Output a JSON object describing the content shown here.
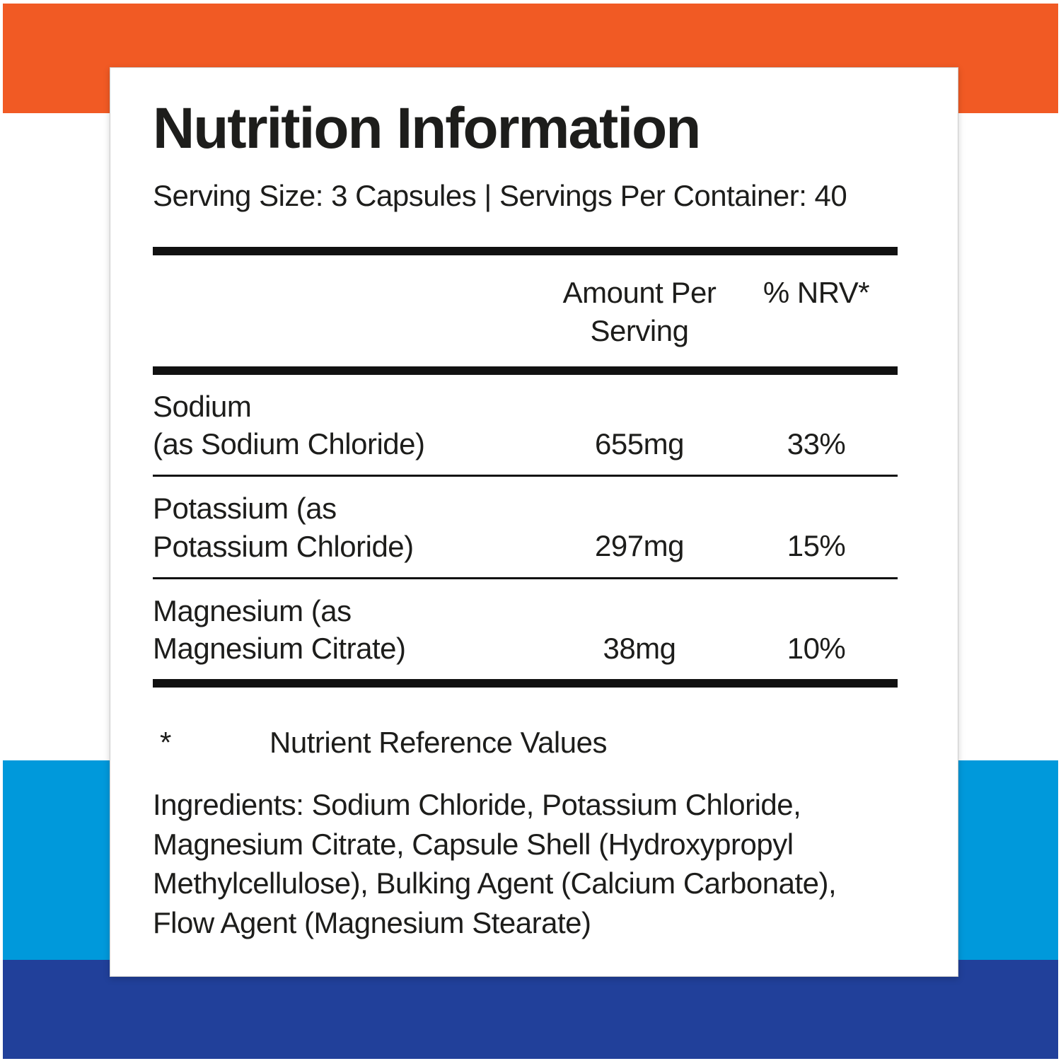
{
  "colors": {
    "orange": "#F15A24",
    "light_blue": "#0099DB",
    "dark_blue": "#21409A",
    "text": "#1D1D1B"
  },
  "label": {
    "title": "Nutrition Information",
    "serving_line": "Serving Size: 3 Capsules | Servings Per Container: 40",
    "table": {
      "headers": {
        "amount": "Amount Per Serving",
        "nrv": "% NRV*"
      },
      "rows": [
        {
          "line1": "Sodium",
          "line2": "(as Sodium Chloride)",
          "amount": "655mg",
          "nrv": "33%"
        },
        {
          "line1": "Potassium (as",
          "line2": "Potassium Chloride)",
          "amount": "297mg",
          "nrv": "15%"
        },
        {
          "line1": "Magnesium (as",
          "line2": "Magnesium Citrate)",
          "amount": "38mg",
          "nrv": "10%"
        }
      ]
    },
    "footnote": {
      "symbol": "*",
      "text": "Nutrient Reference Values"
    },
    "ingredients": "Ingredients: Sodium Chloride, Potassium Chloride, Magnesium Citrate, Capsule Shell (Hydroxypropyl Methylcellulose), Bulking Agent (Calcium Carbonate), Flow Agent (Magnesium Stearate)"
  }
}
